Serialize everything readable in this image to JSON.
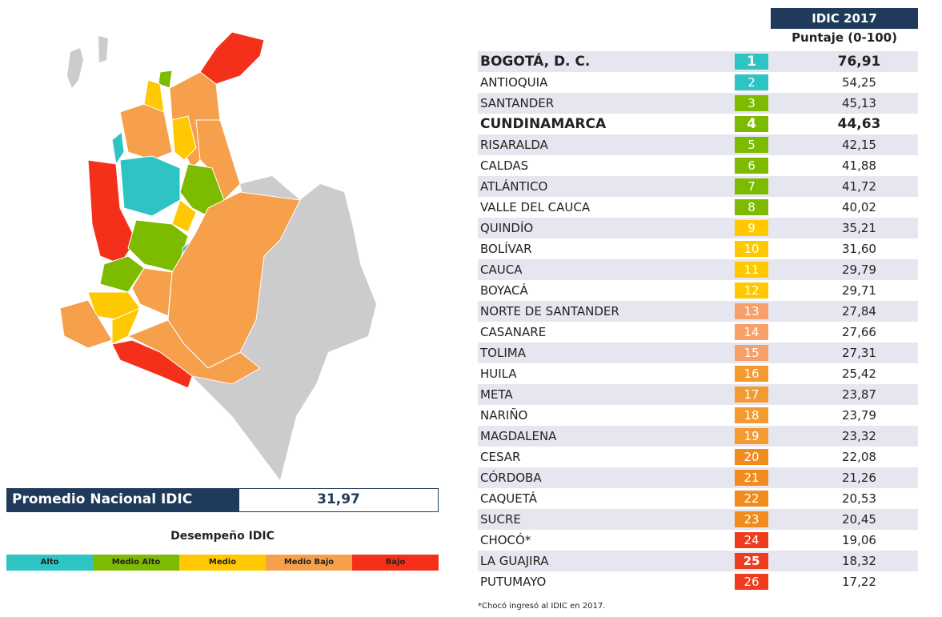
{
  "average": {
    "label": "Promedio Nacional IDIC",
    "value": "31,97"
  },
  "legend": {
    "title": "Desempeño IDIC",
    "items": [
      {
        "name": "Alto",
        "color": "#2ec4c4"
      },
      {
        "name": "Medio Alto",
        "color": "#7dbb00"
      },
      {
        "name": "Medio",
        "color": "#ffc800"
      },
      {
        "name": "Medio Bajo",
        "color": "#f7a04c"
      },
      {
        "name": "Bajo",
        "color": "#f5301a"
      }
    ]
  },
  "table": {
    "header": "IDIC 2017",
    "subheader": "Puntaje (0-100)",
    "rows": [
      {
        "name": "BOGOTÁ, D. C.",
        "rank": 1,
        "score": "76,91",
        "color": "#2ec4c4",
        "bold": true
      },
      {
        "name": "ANTIOQUIA",
        "rank": 2,
        "score": "54,25",
        "color": "#2ec4c4"
      },
      {
        "name": "SANTANDER",
        "rank": 3,
        "score": "45,13",
        "color": "#7dbb00"
      },
      {
        "name": "CUNDINAMARCA",
        "rank": 4,
        "score": "44,63",
        "color": "#7dbb00",
        "bold": true
      },
      {
        "name": "RISARALDA",
        "rank": 5,
        "score": "42,15",
        "color": "#7dbb00"
      },
      {
        "name": "CALDAS",
        "rank": 6,
        "score": "41,88",
        "color": "#7dbb00"
      },
      {
        "name": "ATLÁNTICO",
        "rank": 7,
        "score": "41,72",
        "color": "#7dbb00"
      },
      {
        "name": "VALLE DEL CAUCA",
        "rank": 8,
        "score": "40,02",
        "color": "#7dbb00"
      },
      {
        "name": "QUINDÍO",
        "rank": 9,
        "score": "35,21",
        "color": "#ffc800"
      },
      {
        "name": "BOLÍVAR",
        "rank": 10,
        "score": "31,60",
        "color": "#ffc800"
      },
      {
        "name": "CAUCA",
        "rank": 11,
        "score": "29,79",
        "color": "#ffc800"
      },
      {
        "name": "BOYACÁ",
        "rank": 12,
        "score": "29,71",
        "color": "#ffc800"
      },
      {
        "name": "NORTE DE SANTANDER",
        "rank": 13,
        "score": "27,84",
        "color": "#f7a06a"
      },
      {
        "name": "CASANARE",
        "rank": 14,
        "score": "27,66",
        "color": "#f7a06a"
      },
      {
        "name": "TOLIMA",
        "rank": 15,
        "score": "27,31",
        "color": "#f7a06a"
      },
      {
        "name": "HUILA",
        "rank": 16,
        "score": "25,42",
        "color": "#f39a30"
      },
      {
        "name": "META",
        "rank": 17,
        "score": "23,87",
        "color": "#f39a30"
      },
      {
        "name": "NARIÑO",
        "rank": 18,
        "score": "23,79",
        "color": "#f39a30"
      },
      {
        "name": "MAGDALENA",
        "rank": 19,
        "score": "23,32",
        "color": "#f39a30"
      },
      {
        "name": "CESAR",
        "rank": 20,
        "score": "22,08",
        "color": "#f08c1e"
      },
      {
        "name": "CÓRDOBA",
        "rank": 21,
        "score": "21,26",
        "color": "#f08c1e"
      },
      {
        "name": "CAQUETÁ",
        "rank": 22,
        "score": "20,53",
        "color": "#f08c1e"
      },
      {
        "name": "SUCRE",
        "rank": 23,
        "score": "20,45",
        "color": "#f08c1e"
      },
      {
        "name": "CHOCÓ*",
        "rank": 24,
        "score": "19,06",
        "color": "#f03c1e"
      },
      {
        "name": "LA GUAJIRA",
        "rank": 25,
        "score": "18,32",
        "color": "#f03c1e"
      },
      {
        "name": "PUTUMAYO",
        "rank": 26,
        "score": "17,22",
        "color": "#f03c1e"
      }
    ]
  },
  "footnote": "*Chocó ingresó al IDIC en 2017."
}
